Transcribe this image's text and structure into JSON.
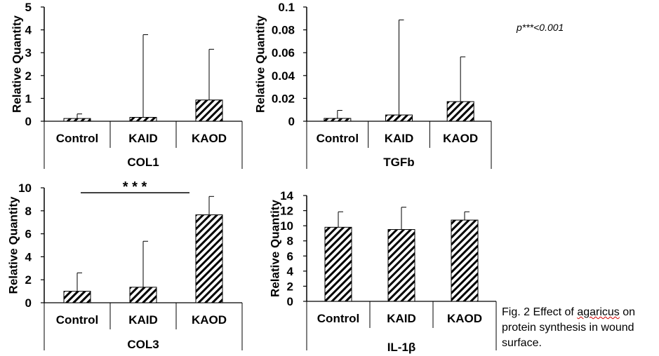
{
  "figure": {
    "significance_note": "p***<0.001",
    "caption_parts": [
      "Fig. 2 Effect of ",
      "agaricus",
      " on protein synthesis in wound surface."
    ]
  },
  "colors": {
    "bar_fill": "#ffffff",
    "hatch": "#000000",
    "axis": "#000000"
  },
  "chart_data": [
    {
      "id": "COL1",
      "type": "bar",
      "title": "COL1",
      "ylabel": "Relative Quantity",
      "categories": [
        "Control",
        "KAID",
        "KAOD"
      ],
      "values": [
        0.12,
        0.17,
        0.93
      ],
      "errors": [
        0.2,
        3.62,
        2.22
      ],
      "ylim": [
        0,
        5
      ],
      "yticks": [
        0,
        1,
        2,
        3,
        4,
        5
      ],
      "ytick_labels": [
        "0",
        "1",
        "2",
        "3",
        "4",
        "5"
      ]
    },
    {
      "id": "TGFb",
      "type": "bar",
      "title": "TGFb",
      "ylabel": "Relative Quantity",
      "categories": [
        "Control",
        "KAID",
        "KAOD"
      ],
      "values": [
        0.0025,
        0.0055,
        0.0172
      ],
      "errors": [
        0.007,
        0.0832,
        0.0392
      ],
      "ylim": [
        0,
        0.1
      ],
      "yticks": [
        0,
        0.02,
        0.04,
        0.06,
        0.08,
        0.1
      ],
      "ytick_labels": [
        "0",
        "0.02",
        "0.04",
        "0.06",
        "0.08",
        "0.1"
      ]
    },
    {
      "id": "COL3",
      "type": "bar",
      "title": "COL3",
      "ylabel": "Relative Quantity",
      "categories": [
        "Control",
        "KAID",
        "KAOD"
      ],
      "values": [
        1.0,
        1.35,
        7.65
      ],
      "errors": [
        1.6,
        4.0,
        1.6
      ],
      "ylim": [
        0,
        10
      ],
      "yticks": [
        0,
        2,
        4,
        6,
        8,
        10
      ],
      "ytick_labels": [
        "0",
        "2",
        "4",
        "6",
        "8",
        "10"
      ],
      "significance": {
        "from": "Control",
        "to": "KAOD",
        "label": "* * *"
      }
    },
    {
      "id": "IL1B",
      "type": "bar",
      "title": "IL-1β",
      "ylabel": "Relative Quantity",
      "categories": [
        "Control",
        "KAID",
        "KAOD"
      ],
      "values": [
        9.8,
        9.5,
        10.75
      ],
      "errors": [
        2.05,
        2.95,
        1.1
      ],
      "ylim": [
        0,
        14
      ],
      "yticks": [
        0,
        2,
        4,
        6,
        8,
        10,
        12,
        14
      ],
      "ytick_labels": [
        "0",
        "2",
        "4",
        "6",
        "8",
        "10",
        "12",
        "14"
      ]
    }
  ]
}
